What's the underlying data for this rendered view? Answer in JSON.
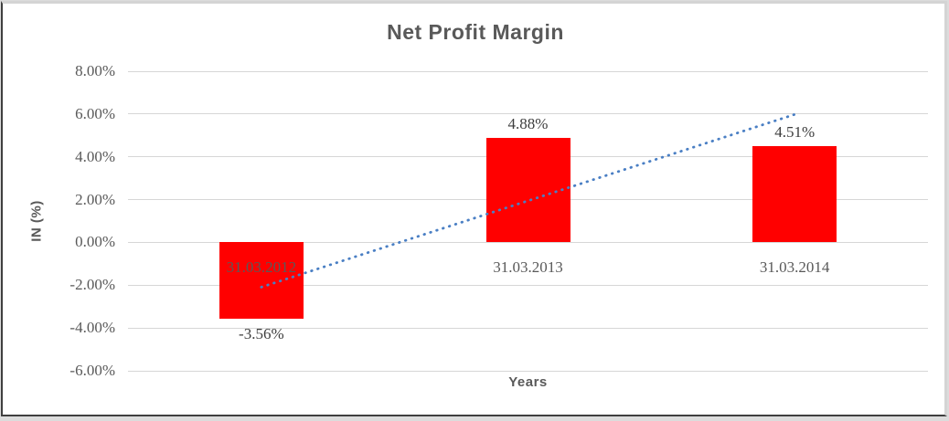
{
  "chart_data": {
    "type": "bar",
    "title": "Net Profit Margin",
    "xlabel": "Years",
    "ylabel": "IN (%)",
    "categories": [
      "31.03.2012",
      "31.03.2013",
      "31.03.2014"
    ],
    "values": [
      -3.56,
      4.88,
      4.51
    ],
    "data_labels": [
      "-3.56%",
      "4.88%",
      "4.51%"
    ],
    "yticks": [
      "8.00%",
      "6.00%",
      "4.00%",
      "2.00%",
      "0.00%",
      "-2.00%",
      "-4.00%",
      "-6.00%"
    ],
    "ytick_values": [
      8,
      6,
      4,
      2,
      0,
      -2,
      -4,
      -6
    ],
    "ylim": [
      -6,
      8
    ],
    "grid": true,
    "legend": "none",
    "bar_color": "#ff0000",
    "trendline": {
      "type": "linear",
      "style": "dotted",
      "color": "#4a7fc4",
      "start_value": -2.09,
      "end_value": 5.98
    }
  },
  "colors": {
    "title_text": "#595959",
    "axis_text": "#595959",
    "data_label_text": "#3d3d3d",
    "gridline": "#d6d6d6",
    "frame_dark": "#3f3f3f",
    "frame_light": "#d4d4d4",
    "plot_background": "#ffffff"
  }
}
